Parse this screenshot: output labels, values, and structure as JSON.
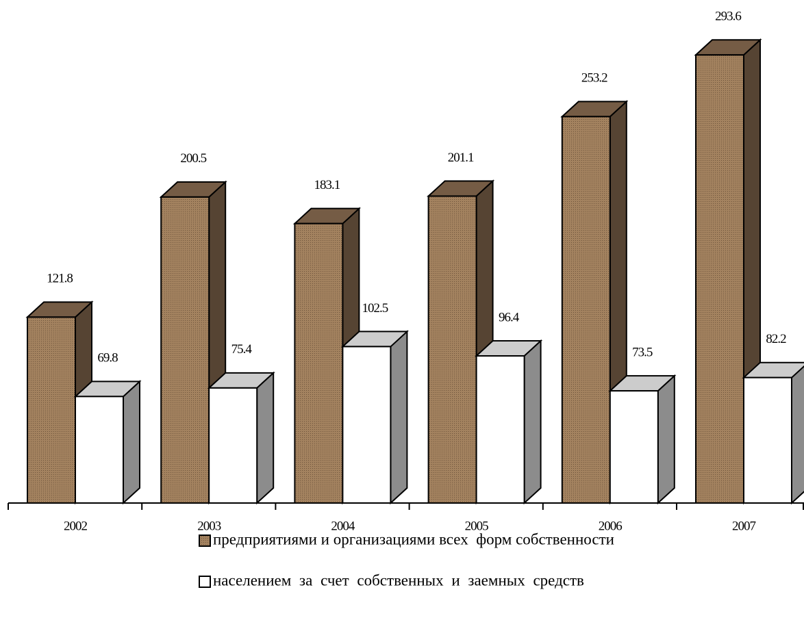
{
  "chart_data": {
    "type": "bar",
    "categories": [
      "2002",
      "2003",
      "2004",
      "2005",
      "2006",
      "2007"
    ],
    "series": [
      {
        "name": "предприятиями и организациями всех  форм собственности",
        "color": "#9c7b5c",
        "values": [
          121.8,
          200.5,
          183.1,
          201.1,
          253.2,
          293.6
        ]
      },
      {
        "name": "населением за счет собственных и заемных средств",
        "color": "#ffffff",
        "values": [
          69.8,
          75.4,
          102.5,
          96.4,
          73.5,
          82.2
        ]
      }
    ]
  }
}
